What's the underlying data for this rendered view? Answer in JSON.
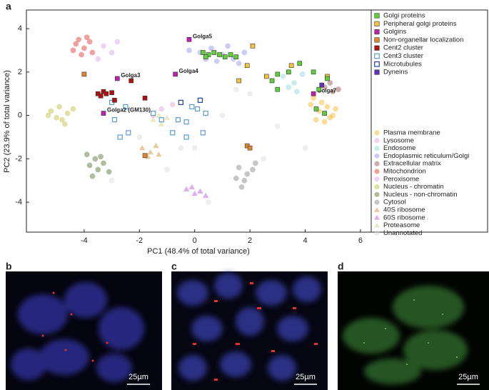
{
  "chart_data": {
    "type": "scatter",
    "xlabel": "PC1 (48.4% of total variance)",
    "ylabel": "PC2 (23.9% of total variance)",
    "xlim": [
      -6.09,
      6.39
    ],
    "ylim": [
      -5.38,
      4.86
    ],
    "xticks": [
      -4,
      -2,
      0,
      2,
      4,
      6
    ],
    "yticks": [
      -4,
      -2,
      0,
      2,
      4
    ],
    "series": [
      {
        "name": "Golgi proteins",
        "color": "#5fd03a",
        "marker": "square",
        "x": [
          0.3,
          0.5,
          0.7,
          0.9,
          1.1,
          1.3,
          1.5,
          0.4,
          2.8,
          3.0,
          3.4,
          3.8,
          4.3,
          4.8,
          4.5,
          3.0,
          4.4,
          4.7
        ],
        "y": [
          2.9,
          2.8,
          2.9,
          2.8,
          2.7,
          2.8,
          2.7,
          2.7,
          1.6,
          1.9,
          2.0,
          2.4,
          2.0,
          1.7,
          1.2,
          1.2,
          0.3,
          0.1
        ]
      },
      {
        "name": "Peripheral golgi proteins",
        "color": "#f5c242",
        "marker": "square",
        "x": [
          2.1,
          1.9,
          2.6,
          3.5,
          1.6,
          4.8
        ],
        "y": [
          3.2,
          2.3,
          1.8,
          2.3,
          1.6,
          1.8
        ]
      },
      {
        "name": "Golgins",
        "color": "#c020b0",
        "marker": "square",
        "x": [
          -0.2,
          -0.7,
          -2.8,
          -3.3,
          4.3
        ],
        "y": [
          3.5,
          1.9,
          1.7,
          0.1,
          1.0
        ],
        "point_labels": [
          "Golga5",
          "Golga4",
          "Golga3",
          "Golga2 (GM130)",
          "Golga7"
        ]
      },
      {
        "name": "Non-organellar localization",
        "color": "#e08830",
        "marker": "square",
        "x": [
          -4.0,
          -1.8,
          1.9,
          2.0
        ],
        "y": [
          1.9,
          -1.85,
          -1.4,
          -1.5
        ]
      },
      {
        "name": "Cent2 cluster",
        "color": "#b01010",
        "marker": "square",
        "x": [
          -3.5,
          -3.3,
          -3.2,
          -3.0,
          -2.3,
          -1.8,
          -2.9,
          -3.4
        ],
        "y": [
          1.0,
          1.1,
          1.0,
          1.05,
          1.6,
          0.8,
          0.7,
          0.9
        ]
      },
      {
        "name": "Cent3 cluster",
        "color": "#5b9bd5",
        "marker": "square-open",
        "x": [
          -3.0,
          -2.5,
          -1.5,
          -1.2,
          -0.6,
          -0.3,
          -0.1,
          0.1,
          0.4,
          0.3,
          -0.8,
          -2.4,
          -2.9,
          -2.7,
          -0.3
        ],
        "y": [
          0.6,
          0.4,
          0.1,
          -0.2,
          -0.2,
          -0.3,
          0.4,
          0.3,
          0.1,
          -0.8,
          -0.8,
          -0.8,
          -0.2,
          -1.0,
          -1.0
        ]
      },
      {
        "name": "Microtubules",
        "color": "#2040a0",
        "marker": "square-open",
        "x": [
          -0.5,
          0.2
        ],
        "y": [
          0.6,
          0.7
        ]
      },
      {
        "name": "Dyneins",
        "color": "#6030c0",
        "marker": "square",
        "x": [
          4.6
        ],
        "y": [
          1.4
        ]
      },
      {
        "name": "Plasma membrane",
        "color": "#f4b41a",
        "marker": "circle",
        "x": [
          4.2,
          4.5,
          4.8,
          5.0,
          4.4,
          4.7,
          5.1,
          4.3,
          4.6,
          4.9
        ],
        "y": [
          0.5,
          0.2,
          0.4,
          0.0,
          -0.2,
          -0.3,
          0.3,
          0.8,
          0.6,
          -0.1
        ]
      },
      {
        "name": "Lysosome",
        "color": "#e0a0d0",
        "marker": "circle",
        "x": [
          -1.2,
          -0.8,
          -1.5
        ],
        "y": [
          0.3,
          0.5,
          0.0
        ]
      },
      {
        "name": "Endosome",
        "color": "#8cd3d6",
        "marker": "circle",
        "x": [
          3.2,
          3.6,
          3.9,
          3.4,
          3.7
        ],
        "y": [
          1.8,
          1.5,
          1.9,
          1.3,
          1.1
        ]
      },
      {
        "name": "Endoplasmic reticulum/Golgi",
        "color": "#8f8fe8",
        "marker": "circle",
        "x": [
          0.2,
          0.6,
          1.0,
          1.4,
          1.8,
          0.8,
          1.2,
          0.4,
          1.6,
          -0.2
        ],
        "y": [
          2.9,
          3.1,
          2.8,
          2.6,
          2.9,
          2.5,
          3.2,
          2.6,
          2.4,
          3.0
        ]
      },
      {
        "name": "Extracellular matrix",
        "color": "#8b4a4a",
        "marker": "circle",
        "x": [
          4.7,
          5.0,
          4.9,
          5.2
        ],
        "y": [
          1.3,
          1.1,
          1.5,
          1.2
        ]
      },
      {
        "name": "Mitochondrion",
        "color": "#e32b2b",
        "marker": "circle",
        "x": [
          -4.3,
          -4.0,
          -3.8,
          -4.1,
          -3.7,
          -4.4,
          -3.9,
          -4.2
        ],
        "y": [
          3.3,
          3.1,
          3.4,
          2.8,
          2.9,
          3.0,
          3.6,
          3.5
        ]
      },
      {
        "name": "Peroxisome",
        "color": "#d6a0e8",
        "marker": "circle",
        "x": [
          -3.3,
          -3.0,
          -3.5,
          -2.8
        ],
        "y": [
          3.2,
          2.9,
          2.6,
          3.4
        ]
      },
      {
        "name": "Nucleus - chromatin",
        "color": "#bcbc3a",
        "marker": "circle",
        "x": [
          -5.2,
          -4.9,
          -4.6,
          -4.8,
          -5.0,
          -4.4,
          -4.7,
          -5.3
        ],
        "y": [
          0.2,
          0.4,
          0.1,
          -0.2,
          -0.1,
          0.3,
          -0.4,
          0.0
        ]
      },
      {
        "name": "Nucleus - non-chromatin",
        "color": "#4e6b2a",
        "marker": "circle",
        "x": [
          -3.9,
          -3.6,
          -3.3,
          -3.5,
          -3.8,
          -3.1,
          -3.4,
          -3.7
        ],
        "y": [
          -1.8,
          -2.0,
          -2.2,
          -2.5,
          -2.3,
          -2.6,
          -1.9,
          -2.8
        ]
      },
      {
        "name": "Cytosol",
        "color": "#808080",
        "marker": "circle",
        "x": [
          1.6,
          1.9,
          2.1,
          1.8,
          1.5,
          2.2,
          1.7
        ],
        "y": [
          -2.4,
          -2.7,
          -2.5,
          -3.0,
          -2.9,
          -2.2,
          -3.3
        ]
      },
      {
        "name": "40S ribosome",
        "color": "#d9a85a",
        "marker": "triangle",
        "x": [
          -1.9,
          -1.6,
          -1.4,
          -1.7,
          -1.3
        ],
        "y": [
          -1.5,
          -1.7,
          -1.4,
          -1.9,
          -1.8
        ]
      },
      {
        "name": "60S ribosome",
        "color": "#c77be0",
        "marker": "triangle",
        "x": [
          -0.3,
          0.0,
          0.2,
          -0.1,
          0.4
        ],
        "y": [
          -3.4,
          -3.6,
          -3.5,
          -3.3,
          -3.7
        ]
      },
      {
        "name": "Proteasome",
        "color": "#dcdc9a",
        "marker": "triangle",
        "x": [
          -1.5,
          -1.2,
          -1.0,
          -1.3
        ],
        "y": [
          -0.2,
          -0.4,
          -0.1,
          0.0
        ]
      },
      {
        "name": "Unannotated",
        "color": "#d9d9d9",
        "marker": "circle",
        "x": [
          -2,
          0,
          1,
          3,
          -1,
          2,
          4,
          -3,
          0.5,
          2.5,
          -0.5,
          1.5
        ],
        "y": [
          -1,
          -1.5,
          0,
          -0.5,
          -2.5,
          1,
          -1.5,
          -3,
          -4,
          -2,
          -1.5,
          1.2
        ]
      }
    ]
  },
  "panels": [
    {
      "label": "a"
    },
    {
      "label": "b",
      "scale_bar": "25µm"
    },
    {
      "label": "c",
      "scale_bar": "25µm"
    },
    {
      "label": "d",
      "scale_bar": "25µm"
    }
  ]
}
